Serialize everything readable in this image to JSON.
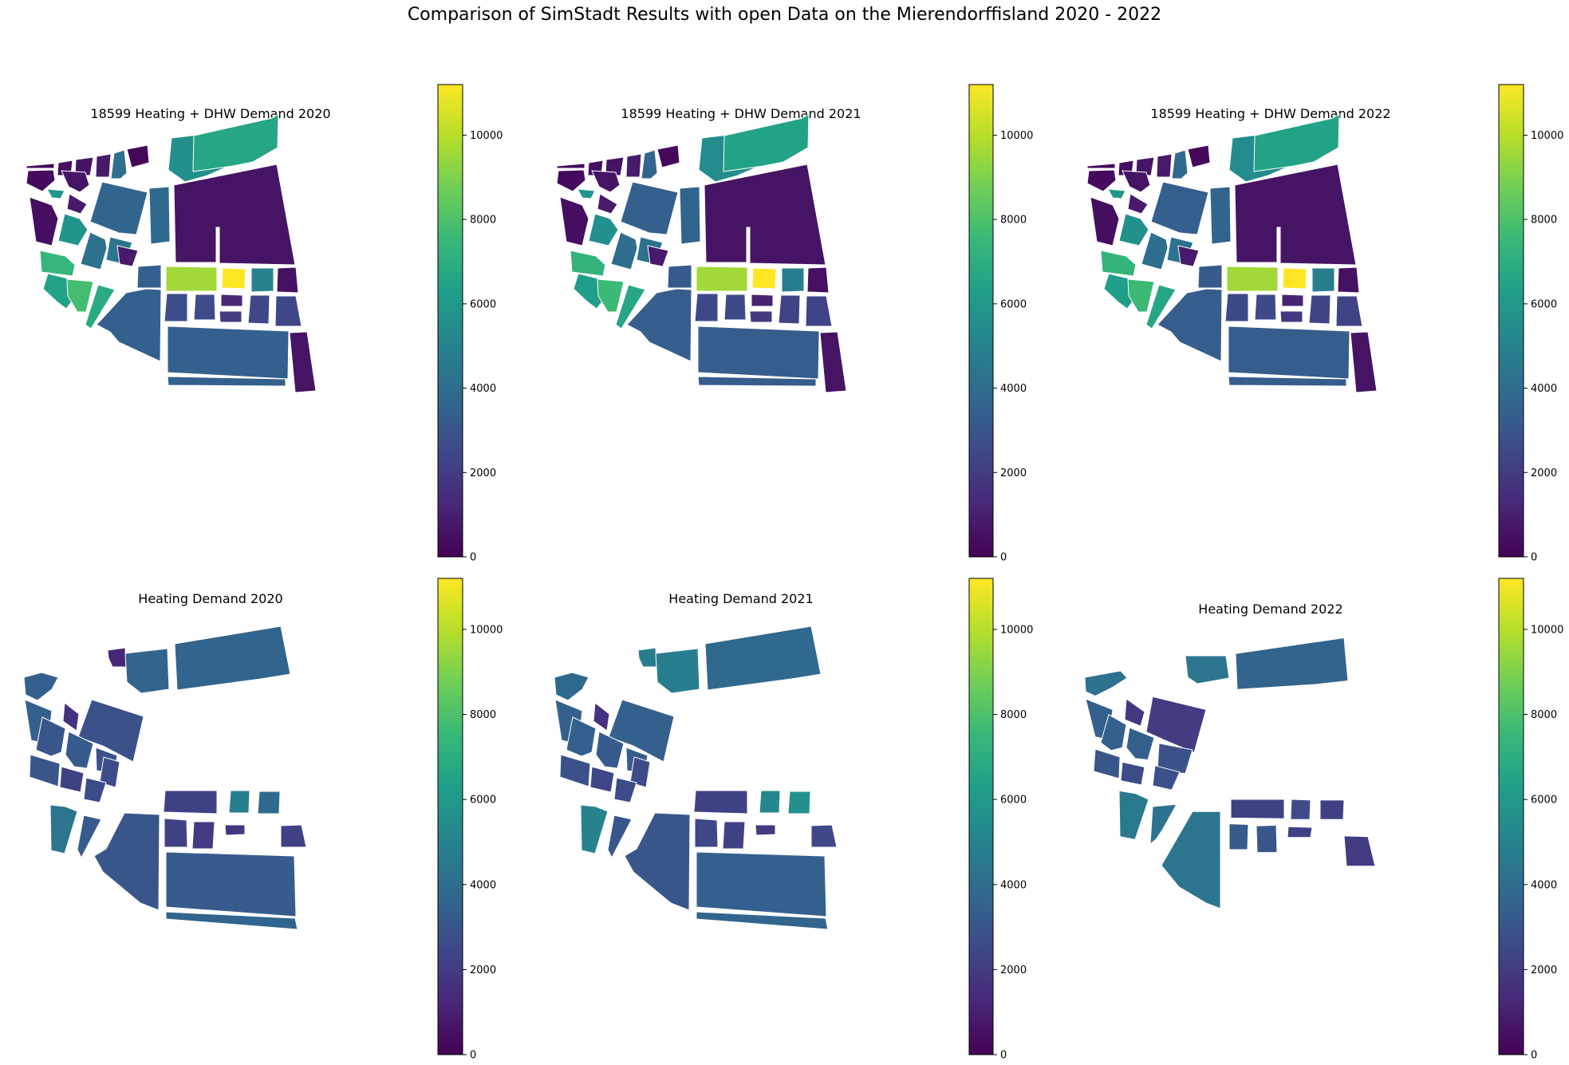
{
  "figure": {
    "title": "Comparison of SimStadt Results with open Data on the Mierendorffisland 2020 - 2022"
  },
  "colormap": {
    "name": "viridis",
    "stops": [
      "#440154",
      "#482878",
      "#3e4989",
      "#31688e",
      "#26828e",
      "#1f9e89",
      "#35b779",
      "#6ece58",
      "#b5de2b",
      "#fde725"
    ],
    "range": [
      0,
      11200
    ],
    "ticks": [
      0,
      2000,
      4000,
      6000,
      8000,
      10000
    ],
    "tick_labels": [
      "0",
      "2000",
      "4000",
      "6000",
      "8000",
      "10000"
    ]
  },
  "chart_data": [
    {
      "type": "heatmap",
      "title": "18599 Heating + DHW Demand 2020",
      "colorbar_range": [
        0,
        11200
      ],
      "colorbar_ticks": [
        0,
        2000,
        4000,
        6000,
        8000,
        10000
      ],
      "block_values": [
        300,
        400,
        600,
        800,
        4000,
        200,
        5600,
        6600,
        300,
        600,
        6000,
        800,
        3600,
        3800,
        600,
        400,
        5800,
        4200,
        4400,
        3400,
        9600,
        11200,
        5000,
        500,
        800,
        2600,
        2600,
        1200,
        2000,
        2400,
        2400,
        3400,
        7400,
        6400,
        7800,
        6800,
        3400,
        3400,
        600
      ]
    },
    {
      "type": "heatmap",
      "title": "18599 Heating + DHW Demand 2021",
      "colorbar_range": [
        0,
        11200
      ],
      "colorbar_ticks": [
        0,
        2000,
        4000,
        6000,
        8000,
        10000
      ],
      "block_values": [
        300,
        400,
        600,
        800,
        3600,
        200,
        5400,
        6400,
        300,
        600,
        5800,
        800,
        3400,
        3600,
        600,
        400,
        5600,
        4000,
        4200,
        3200,
        9600,
        11200,
        4800,
        500,
        800,
        2500,
        2500,
        1100,
        1900,
        2300,
        2300,
        3300,
        7300,
        6200,
        7600,
        6600,
        3300,
        3300,
        600
      ]
    },
    {
      "type": "heatmap",
      "title": "18599 Heating + DHW Demand 2022",
      "colorbar_range": [
        0,
        11200
      ],
      "colorbar_ticks": [
        0,
        2000,
        4000,
        6000,
        8000,
        10000
      ],
      "block_values": [
        300,
        400,
        600,
        800,
        3800,
        200,
        5400,
        6400,
        300,
        600,
        5800,
        800,
        3400,
        3600,
        600,
        400,
        5600,
        4000,
        4200,
        3200,
        9600,
        11200,
        4800,
        500,
        800,
        2500,
        2500,
        1100,
        1900,
        2300,
        2300,
        3300,
        7300,
        6200,
        7600,
        6600,
        3300,
        3300,
        600
      ]
    },
    {
      "type": "heatmap",
      "title": "Heating Demand 2020",
      "colorbar_range": [
        0,
        11200
      ],
      "colorbar_ticks": [
        0,
        2000,
        4000,
        6000,
        8000,
        10000
      ],
      "block_values": [
        3400,
        1200,
        3600,
        3600,
        3400,
        1600,
        2800,
        3000,
        3200,
        2800,
        2600,
        3000,
        2200,
        2600,
        2200,
        4800,
        3800,
        4400,
        3200,
        3000,
        2200,
        2000,
        1800,
        2200,
        3200,
        3600
      ]
    },
    {
      "type": "heatmap",
      "title": "Heating Demand 2021",
      "colorbar_range": [
        0,
        11200
      ],
      "colorbar_ticks": [
        0,
        2000,
        4000,
        6000,
        8000,
        10000
      ],
      "block_values": [
        3800,
        4800,
        4800,
        3800,
        3400,
        1600,
        3400,
        3400,
        3200,
        3200,
        2600,
        2800,
        2400,
        2600,
        2200,
        5200,
        5600,
        5000,
        3000,
        3000,
        2400,
        2200,
        2000,
        2400,
        3400,
        3600
      ]
    },
    {
      "type": "heatmap",
      "title": "Heating Demand 2022",
      "colorbar_range": [
        0,
        11200
      ],
      "colorbar_ticks": [
        0,
        2000,
        4000,
        6000,
        8000,
        10000
      ],
      "block_values": [
        4200,
        4400,
        3600,
        3400,
        1800,
        2000,
        3400,
        3400,
        2800,
        3000,
        2600,
        2800,
        2200,
        2600,
        2200,
        4600,
        4200,
        4400,
        3200,
        3000,
        2200,
        2000,
        1800,
        2200
      ]
    }
  ]
}
